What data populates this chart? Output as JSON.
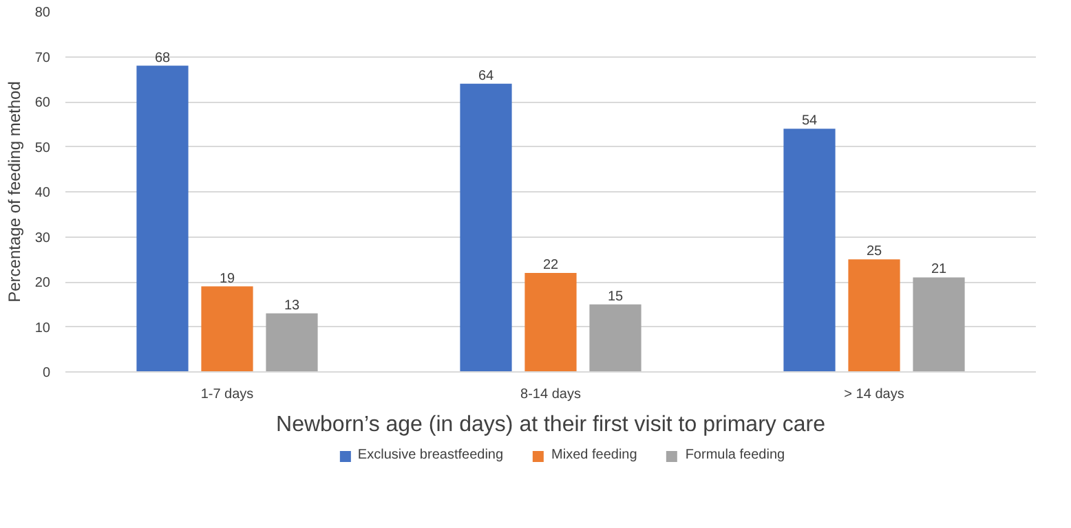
{
  "chart_data": {
    "type": "bar",
    "xlabel": "Newborn’s age (in days) at their first visit to primary care",
    "ylabel": "Percentage of feeding method",
    "categories": [
      "1-7 days",
      "8-14 days",
      "> 14 days"
    ],
    "series": [
      {
        "name": "Exclusive breastfeeding",
        "color": "#4472c4",
        "values": [
          68,
          64,
          54
        ]
      },
      {
        "name": "Mixed feeding",
        "color": "#ed7d31",
        "values": [
          19,
          22,
          25
        ]
      },
      {
        "name": "Formula feeding",
        "color": "#a5a5a5",
        "values": [
          13,
          15,
          21
        ]
      }
    ],
    "ylim": [
      0,
      80
    ],
    "yticks": [
      0,
      10,
      20,
      30,
      40,
      50,
      60,
      70,
      80
    ],
    "grid": "y",
    "legend": "bottom",
    "data_labels": true
  }
}
